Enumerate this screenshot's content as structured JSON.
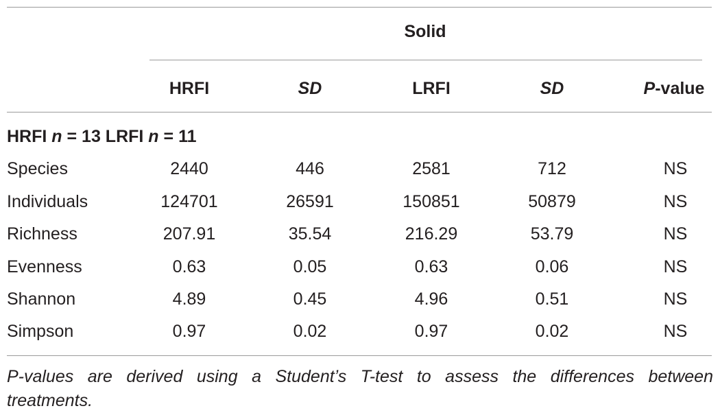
{
  "table": {
    "spanning_header": "Solid",
    "columns": {
      "hrfi": "HRFI",
      "sd1": "SD",
      "lrfi": "LRFI",
      "sd2": "SD",
      "p_italic": "P",
      "p_rest": "-value"
    },
    "group_label": {
      "a": "HRFI ",
      "n1": "n",
      "b": " = 13 LRFI ",
      "n2": "n",
      "c": " = 11"
    },
    "rows": [
      {
        "label": "Species",
        "hrfi": "2440",
        "sd1": "446",
        "lrfi": "2581",
        "sd2": "712",
        "p": "NS"
      },
      {
        "label": "Individuals",
        "hrfi": "124701",
        "sd1": "26591",
        "lrfi": "150851",
        "sd2": "50879",
        "p": "NS"
      },
      {
        "label": "Richness",
        "hrfi": "207.91",
        "sd1": "35.54",
        "lrfi": "216.29",
        "sd2": "53.79",
        "p": "NS"
      },
      {
        "label": "Evenness",
        "hrfi": "0.63",
        "sd1": "0.05",
        "lrfi": "0.63",
        "sd2": "0.06",
        "p": "NS"
      },
      {
        "label": "Shannon",
        "hrfi": "4.89",
        "sd1": "0.45",
        "lrfi": "4.96",
        "sd2": "0.51",
        "p": "NS"
      },
      {
        "label": "Simpson",
        "hrfi": "0.97",
        "sd1": "0.02",
        "lrfi": "0.97",
        "sd2": "0.02",
        "p": "NS"
      }
    ]
  },
  "footnote": {
    "line1": "P-values are derived using a Student’s T-test to assess the differences between",
    "line2": "treatments."
  }
}
